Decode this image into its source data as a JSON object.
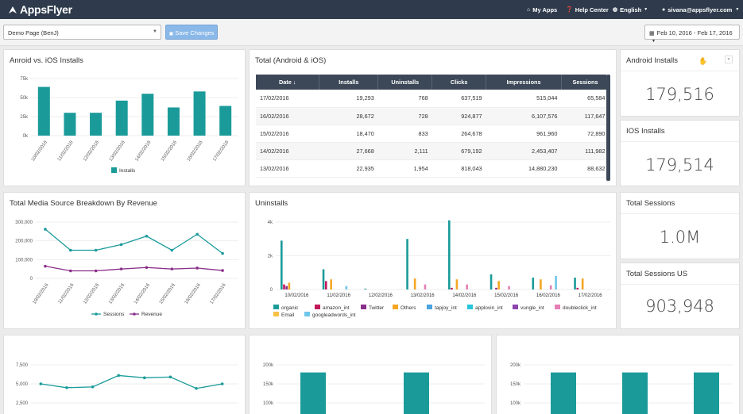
{
  "brand": {
    "name": "AppsFlyer"
  },
  "nav": {
    "my_apps": "My Apps",
    "help": "Help Center",
    "lang": "English",
    "user": "sivana@appsflyer.com"
  },
  "toolbar": {
    "page_select": "Demo Page (BenJ)",
    "save": "Save Changes",
    "date_range": "Feb 10, 2016 - Feb 17, 2016"
  },
  "colors": {
    "teal": "#1a9b9a",
    "purple": "#8a2f8a",
    "topbar": "#2f3b4c"
  },
  "panels": {
    "installs_chart": {
      "title": "Anroid vs. iOS Installs"
    },
    "table": {
      "title": "Total (Android & iOS)"
    },
    "android": {
      "title": "Android Installs",
      "value": "179,516"
    },
    "ios": {
      "title": "IOS Installs",
      "value": "179,514"
    },
    "media": {
      "title": "Total Media Source Breakdown By Revenue"
    },
    "uninstalls": {
      "title": "Uninstalls"
    },
    "sessions": {
      "title": "Total Sessions",
      "value": "1.0M"
    },
    "sessions_us": {
      "title": "Total Sessions US",
      "value": "903,948"
    }
  },
  "table": {
    "headers": [
      "Date ↓",
      "Installs",
      "Uninstalls",
      "Clicks",
      "Impressions",
      "Sessions"
    ],
    "rows": [
      [
        "17/02/2016",
        "19,293",
        "768",
        "637,519",
        "515,044",
        "65,584"
      ],
      [
        "16/02/2016",
        "28,672",
        "728",
        "924,877",
        "6,107,576",
        "117,647"
      ],
      [
        "15/02/2016",
        "18,470",
        "833",
        "264,678",
        "961,960",
        "72,890"
      ],
      [
        "14/02/2016",
        "27,668",
        "2,111",
        "679,192",
        "2,453,407",
        "111,982"
      ],
      [
        "13/02/2016",
        "22,935",
        "1,954",
        "818,043",
        "14,880,230",
        "88,632"
      ]
    ]
  },
  "chart_data": [
    {
      "type": "bar",
      "categories": [
        "10/02/2016",
        "11/02/2016",
        "12/02/2016",
        "13/02/2016",
        "14/02/2016",
        "15/02/2016",
        "16/02/2016",
        "17/02/2016"
      ],
      "series": [
        {
          "name": "Installs",
          "values": [
            64000,
            30000,
            30000,
            46000,
            55000,
            37000,
            58000,
            39000
          ]
        }
      ],
      "ylim": [
        0,
        75000
      ],
      "yticks": [
        "0k",
        "25k",
        "50k",
        "75k"
      ],
      "legend": "bottom"
    },
    {
      "type": "line",
      "categories": [
        "10/02/2016",
        "11/02/2016",
        "12/02/2016",
        "13/02/2016",
        "14/02/2016",
        "15/02/2016",
        "16/02/2016",
        "17/02/2016"
      ],
      "series": [
        {
          "name": "Sessions",
          "values": [
            262000,
            150000,
            150000,
            180000,
            225000,
            150000,
            235000,
            133000
          ]
        },
        {
          "name": "Revenue",
          "values": [
            65000,
            40000,
            40000,
            50000,
            58000,
            50000,
            55000,
            42000
          ]
        }
      ],
      "ylim": [
        0,
        300000
      ],
      "yticks": [
        "0",
        "100,000",
        "200,000",
        "300,000"
      ],
      "legend": "bottom"
    },
    {
      "type": "bar",
      "categories": [
        "10/02/2016",
        "11/02/2016",
        "12/02/2016",
        "13/02/2016",
        "14/02/2016",
        "15/02/2016",
        "16/02/2016",
        "17/02/2016"
      ],
      "series": [
        {
          "name": "organic",
          "values": [
            2900,
            1200,
            50,
            3000,
            4100,
            900,
            700,
            700
          ]
        },
        {
          "name": "amazon_int",
          "values": [
            300,
            500,
            0,
            0,
            100,
            0,
            0,
            100
          ]
        },
        {
          "name": "Twitter",
          "values": [
            200,
            0,
            0,
            0,
            0,
            100,
            0,
            0
          ]
        },
        {
          "name": "Others",
          "values": [
            400,
            600,
            0,
            650,
            600,
            500,
            600,
            650
          ]
        },
        {
          "name": "tapjoy_int",
          "values": [
            0,
            0,
            0,
            0,
            0,
            0,
            0,
            0
          ]
        },
        {
          "name": "applovin_int",
          "values": [
            0,
            0,
            0,
            0,
            0,
            0,
            0,
            0
          ]
        },
        {
          "name": "vungle_int",
          "values": [
            0,
            0,
            0,
            0,
            0,
            0,
            0,
            0
          ]
        },
        {
          "name": "doubleclick_int",
          "values": [
            0,
            0,
            0,
            300,
            300,
            200,
            250,
            0
          ]
        },
        {
          "name": "Email",
          "values": [
            0,
            0,
            0,
            0,
            0,
            0,
            0,
            0
          ]
        },
        {
          "name": "googleadwords_int",
          "values": [
            0,
            200,
            0,
            0,
            0,
            0,
            800,
            0
          ]
        }
      ],
      "ylim": [
        0,
        4000
      ],
      "yticks": [
        "0",
        "2k",
        "4k"
      ],
      "legend": "bottom"
    },
    {
      "type": "line",
      "series": [
        {
          "values": [
            5000,
            4500,
            4600,
            6100,
            5800,
            5900,
            4400,
            5000
          ]
        }
      ],
      "yticks": [
        "2,500",
        "5,000",
        "7,500"
      ]
    },
    {
      "type": "bar",
      "series": [
        {
          "values": [
            180000,
            180000
          ]
        }
      ],
      "yticks": [
        "100k",
        "150k",
        "200k"
      ]
    },
    {
      "type": "bar",
      "series": [
        {
          "values": [
            180000,
            180000,
            180000
          ]
        }
      ],
      "yticks": [
        "100k",
        "150k",
        "200k"
      ]
    }
  ]
}
